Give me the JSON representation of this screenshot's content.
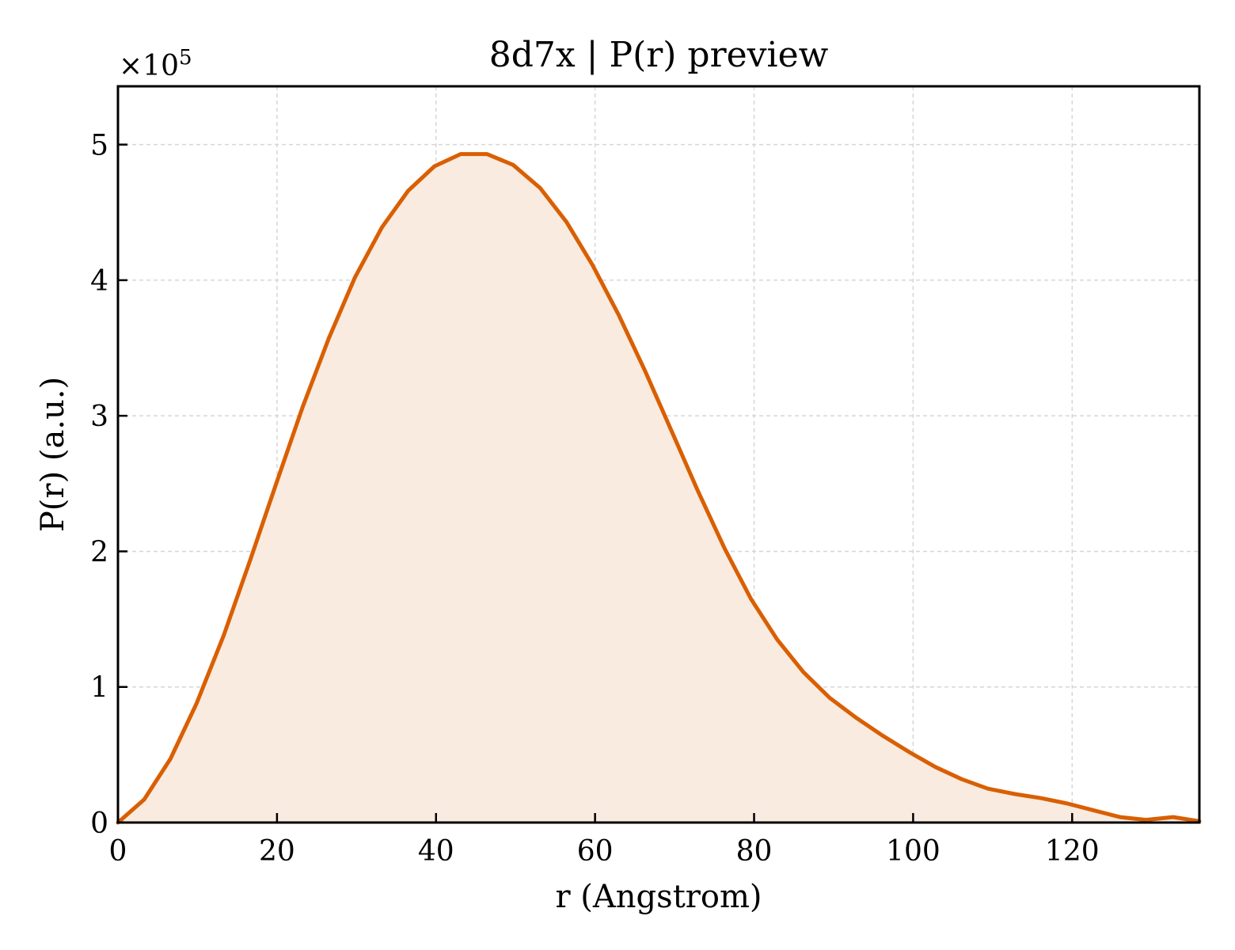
{
  "chart_data": {
    "type": "area",
    "title": "8d7x | P(r) preview",
    "xlabel": "r (Angstrom)",
    "ylabel": "P(r) (a.u.)",
    "y_multiplier_base": "×10",
    "y_multiplier_exp": "5",
    "xlim": [
      0,
      136
    ],
    "ylim": [
      0,
      5.43
    ],
    "xticks": [
      0,
      20,
      40,
      60,
      80,
      100,
      120
    ],
    "xtick_labels": [
      "0",
      "20",
      "40",
      "60",
      "80",
      "100",
      "120"
    ],
    "yticks": [
      0,
      1,
      2,
      3,
      4,
      5
    ],
    "ytick_labels": [
      "0",
      "1",
      "2",
      "3",
      "4",
      "5"
    ],
    "grid": true,
    "colors": {
      "line": "#d95f02",
      "fill": "#f9ebe0",
      "grid": "#d6d6d6"
    },
    "series": [
      {
        "x": [
          0,
          3.3,
          6.6,
          9.9,
          13.3,
          16.6,
          19.9,
          23.2,
          26.5,
          29.8,
          33.2,
          36.5,
          39.8,
          43.1,
          46.4,
          49.7,
          53.1,
          56.4,
          59.7,
          63.0,
          66.3,
          69.6,
          72.9,
          76.3,
          79.6,
          82.9,
          86.2,
          89.5,
          92.9,
          96.2,
          99.5,
          102.8,
          106.1,
          109.4,
          112.8,
          116.1,
          119.4,
          122.7,
          126.0,
          129.3,
          132.7,
          136
        ],
        "values": [
          0.0,
          0.17,
          0.47,
          0.88,
          1.38,
          1.93,
          2.5,
          3.06,
          3.57,
          4.02,
          4.39,
          4.66,
          4.84,
          4.93,
          4.93,
          4.85,
          4.68,
          4.43,
          4.11,
          3.74,
          3.33,
          2.89,
          2.45,
          2.02,
          1.65,
          1.35,
          1.11,
          0.92,
          0.77,
          0.64,
          0.52,
          0.41,
          0.32,
          0.25,
          0.21,
          0.18,
          0.14,
          0.09,
          0.04,
          0.02,
          0.04,
          0.01
        ]
      }
    ]
  }
}
